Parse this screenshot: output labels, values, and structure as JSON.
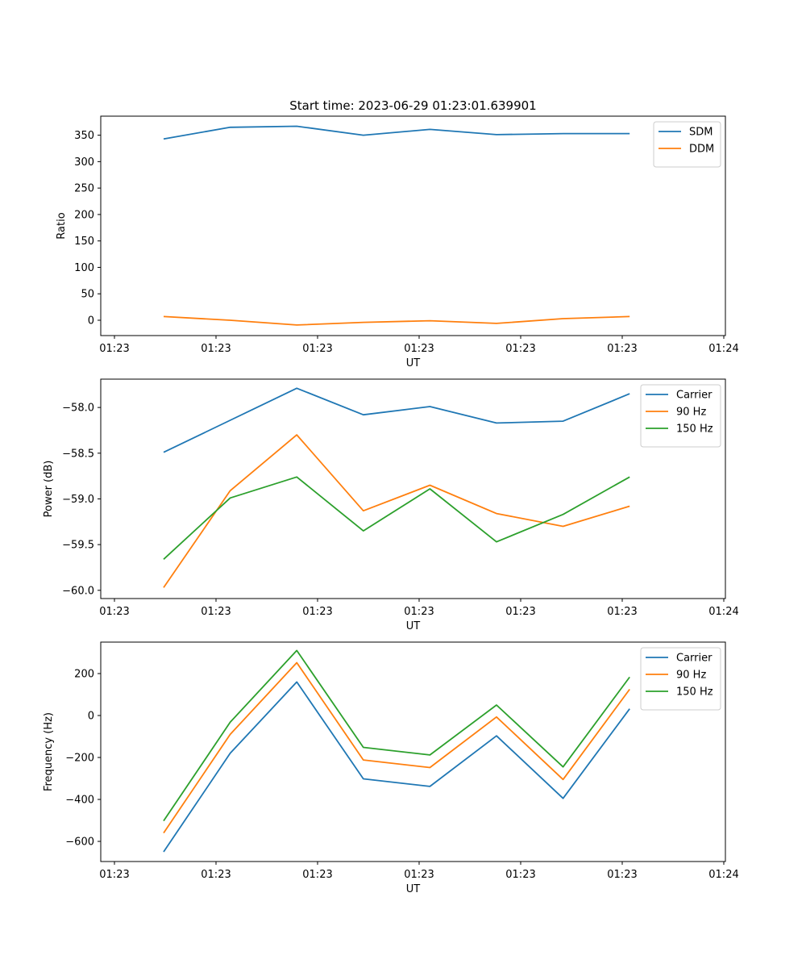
{
  "figure_title": "Start time: 2023-06-29 01:23:01.639901",
  "chart_data": [
    {
      "type": "line",
      "xlabel": "UT",
      "ylabel": "Ratio",
      "x_tick_labels": [
        "01:23",
        "01:23",
        "01:23",
        "01:23",
        "01:23",
        "01:23",
        "01:24"
      ],
      "y_ticks": [
        0,
        50,
        100,
        150,
        200,
        250,
        300,
        350
      ],
      "ylim": [
        -29,
        386
      ],
      "legend": "top-right",
      "grid": false,
      "series": [
        {
          "name": "SDM",
          "color": "#1f77b4",
          "values": [
            343,
            365,
            367,
            350,
            361,
            351,
            353,
            353
          ]
        },
        {
          "name": "DDM",
          "color": "#ff7f0e",
          "values": [
            7,
            0,
            -9,
            -4,
            -1,
            -6,
            3,
            7
          ]
        }
      ]
    },
    {
      "type": "line",
      "xlabel": "UT",
      "ylabel": "Power (dB)",
      "x_tick_labels": [
        "01:23",
        "01:23",
        "01:23",
        "01:23",
        "01:23",
        "01:23",
        "01:24"
      ],
      "y_ticks": [
        -60.0,
        -59.5,
        -59.0,
        -58.5,
        -58.0
      ],
      "y_tick_labels": [
        "−60.0",
        "−59.5",
        "−59.0",
        "−58.5",
        "−58.0"
      ],
      "ylim": [
        -60.09,
        -57.69
      ],
      "legend": "top-right",
      "grid": false,
      "series": [
        {
          "name": "Carrier",
          "color": "#1f77b4",
          "values": [
            -58.49,
            -58.14,
            -57.79,
            -58.08,
            -57.99,
            -58.17,
            -58.15,
            -57.85
          ]
        },
        {
          "name": "90 Hz",
          "color": "#ff7f0e",
          "values": [
            -59.97,
            -58.91,
            -58.3,
            -59.13,
            -58.85,
            -59.16,
            -59.3,
            -59.08
          ]
        },
        {
          "name": "150 Hz",
          "color": "#2ca02c",
          "values": [
            -59.66,
            -58.99,
            -58.76,
            -59.35,
            -58.89,
            -59.47,
            -59.17,
            -58.76
          ]
        }
      ]
    },
    {
      "type": "line",
      "xlabel": "UT",
      "ylabel": "Frequency (Hz)",
      "x_tick_labels": [
        "01:23",
        "01:23",
        "01:23",
        "01:23",
        "01:23",
        "01:23",
        "01:24"
      ],
      "y_ticks": [
        -600,
        -400,
        -200,
        0,
        200
      ],
      "y_tick_labels": [
        "−600",
        "−400",
        "−200",
        "0",
        "200"
      ],
      "ylim": [
        -696,
        350
      ],
      "legend": "top-right",
      "grid": false,
      "series": [
        {
          "name": "Carrier",
          "color": "#1f77b4",
          "values": [
            -650,
            -180,
            160,
            -302,
            -338,
            -97,
            -395,
            32
          ]
        },
        {
          "name": "90 Hz",
          "color": "#ff7f0e",
          "values": [
            -560,
            -90,
            252,
            -212,
            -248,
            -7,
            -305,
            125
          ]
        },
        {
          "name": "150 Hz",
          "color": "#2ca02c",
          "values": [
            -502,
            -32,
            310,
            -152,
            -188,
            50,
            -245,
            183
          ]
        }
      ]
    }
  ]
}
